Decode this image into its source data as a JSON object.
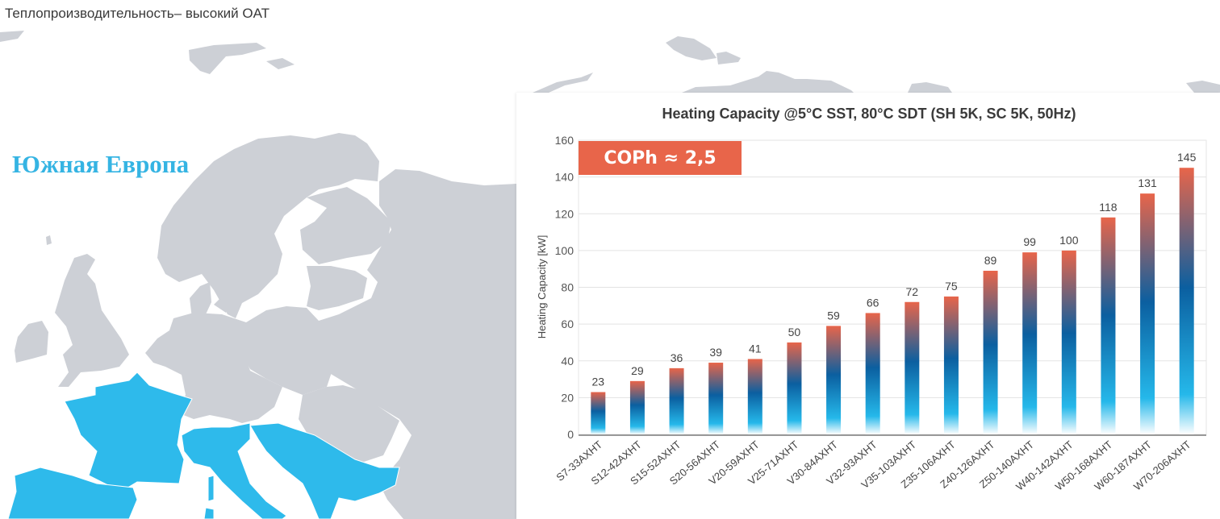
{
  "page": {
    "title": "Теплопроизводительность– высокий OAT",
    "region_title": "Южная Европа"
  },
  "colors": {
    "highlight_region": "#2ebaeb",
    "land": "#cdd0d6",
    "bar_top": "#e8654a",
    "bar_mid": "#0b5fa0",
    "bar_low": "#25b8ea",
    "badge": "#e8654a"
  },
  "badge": {
    "label": "COPh ≈ 2,5"
  },
  "chart_data": {
    "type": "bar",
    "title": "Heating Capacity @5°C SST, 80°C SDT (SH 5K, SC 5K, 50Hz)",
    "xlabel": "",
    "ylabel": "Heating Capacity [kW]",
    "ylim": [
      0,
      160
    ],
    "yticks": [
      0,
      20,
      40,
      60,
      80,
      100,
      120,
      140,
      160
    ],
    "grid": true,
    "categories": [
      "S7-33AXHT",
      "S12-42AXHT",
      "S15-52AXHT",
      "S20-56AXHT",
      "V20-59AXHT",
      "V25-71AXHT",
      "V30-84AXHT",
      "V32-93AXHT",
      "V35-103AXHT",
      "Z35-106AXHT",
      "Z40-126AXHT",
      "Z50-140AXHT",
      "W40-142AXHT",
      "W50-168AXHT",
      "W60-187AXHT",
      "W70-206AXHT"
    ],
    "values": [
      23,
      29,
      36,
      39,
      41,
      50,
      59,
      66,
      72,
      75,
      89,
      99,
      100,
      118,
      131,
      145
    ],
    "data_labels": true
  }
}
